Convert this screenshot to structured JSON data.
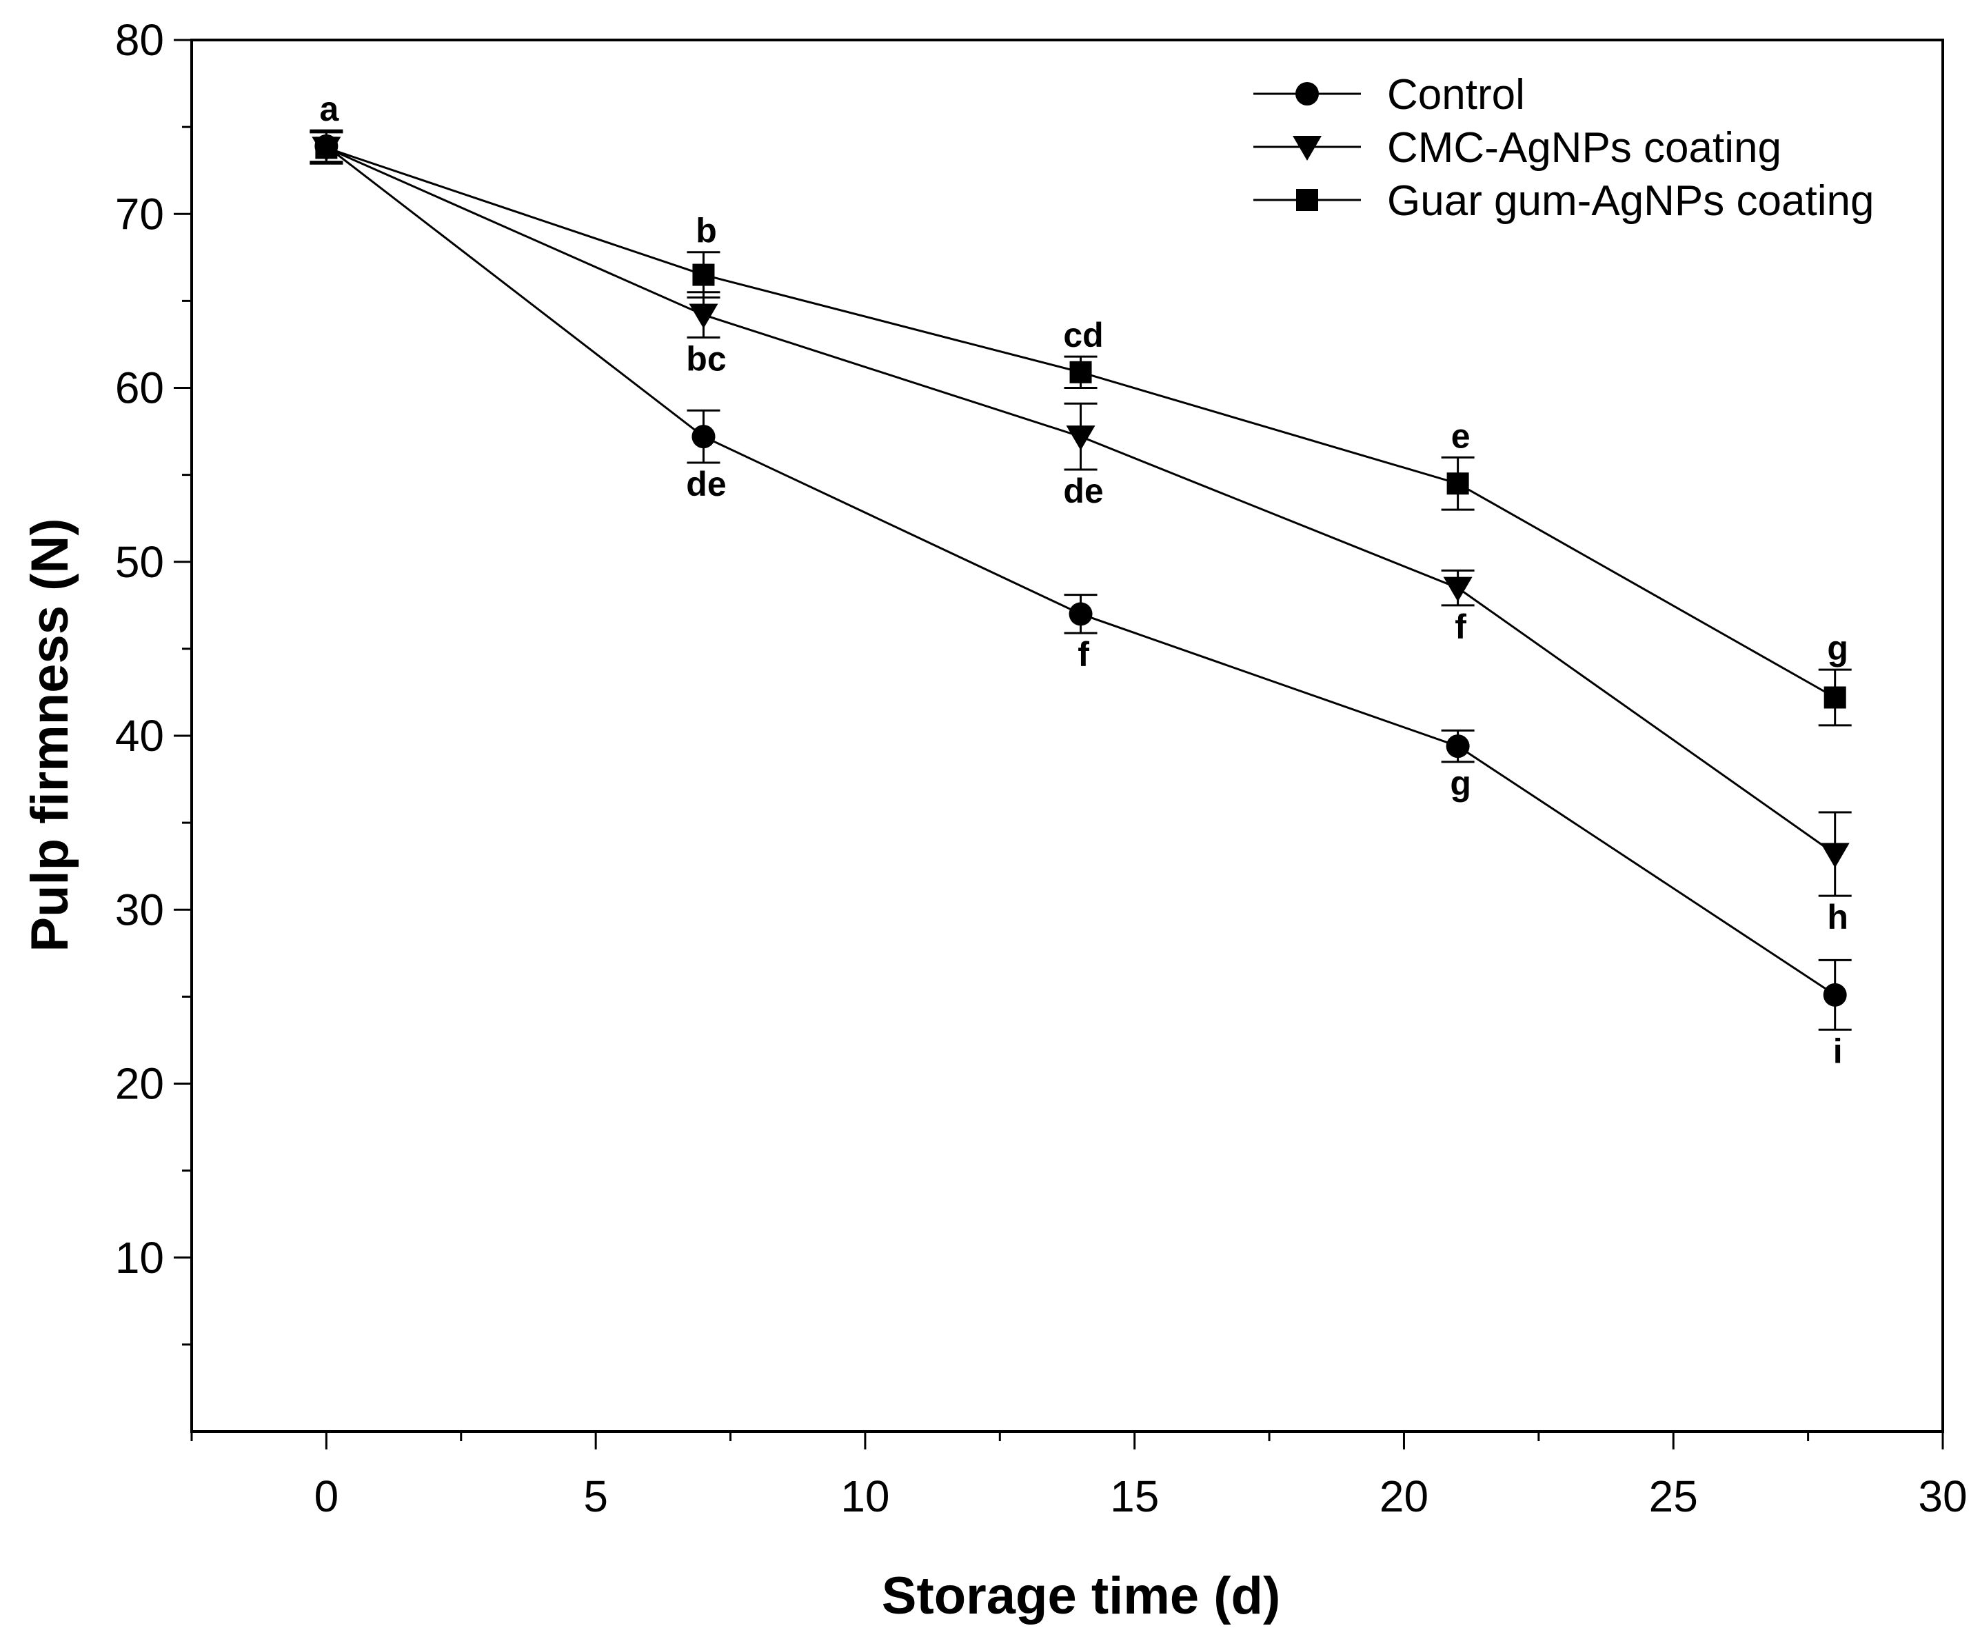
{
  "chart_data": {
    "type": "line",
    "title": "",
    "xlabel": "Storage time (d)",
    "ylabel": "Pulp firmness (N)",
    "xlim": [
      -2.5,
      30
    ],
    "ylim": [
      0,
      80
    ],
    "xticks": [
      0,
      5,
      10,
      15,
      20,
      25,
      30
    ],
    "xtick_labels": [
      "0",
      "5",
      "10",
      "15",
      "20",
      "25",
      "30"
    ],
    "yticks": [
      10,
      20,
      30,
      40,
      50,
      60,
      70,
      80
    ],
    "ytick_labels": [
      "10",
      "20",
      "30",
      "40",
      "50",
      "60",
      "70",
      "80"
    ],
    "grid": false,
    "legend_position": "top-right",
    "x": [
      0,
      7,
      14,
      21,
      28
    ],
    "series": [
      {
        "name": "Control",
        "marker": "circle",
        "values": [
          73.9,
          57.2,
          47.0,
          39.4,
          25.1
        ],
        "errors": [
          0.9,
          1.5,
          1.1,
          0.9,
          2.0
        ],
        "labels": [
          "a",
          "de",
          "f",
          "g",
          "i"
        ],
        "label_pos": [
          "above",
          "below",
          "below",
          "below",
          "below"
        ]
      },
      {
        "name": "CMC-AgNPs coating",
        "marker": "triangle-down",
        "values": [
          73.8,
          64.2,
          57.2,
          48.5,
          33.2
        ],
        "errors": [
          0.9,
          1.3,
          1.9,
          1.0,
          2.4
        ],
        "labels": [
          "",
          "bc",
          "de",
          "f",
          "h"
        ],
        "label_pos": [
          "above",
          "below",
          "below",
          "below",
          "below"
        ]
      },
      {
        "name": "Guar gum-AgNPs coating",
        "marker": "square",
        "values": [
          73.8,
          66.5,
          60.9,
          54.5,
          42.2
        ],
        "errors": [
          0.9,
          1.3,
          0.9,
          1.5,
          1.6
        ],
        "labels": [
          "",
          "b",
          "cd",
          "e",
          "g"
        ],
        "label_pos": [
          "above",
          "above",
          "above",
          "above",
          "above"
        ]
      }
    ]
  }
}
